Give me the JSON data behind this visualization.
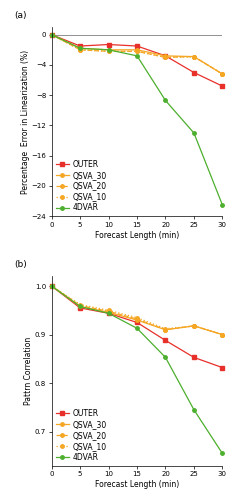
{
  "x": [
    0,
    5,
    10,
    15,
    20,
    25,
    30
  ],
  "panel_a": {
    "title": "(a)",
    "ylabel": "Percentage  Error in Linearization (%)",
    "xlabel": "Forecast Length (min)",
    "ylim": [
      -24,
      1
    ],
    "yticks": [
      0,
      -4,
      -8,
      -12,
      -16,
      -20,
      -24
    ],
    "xlim": [
      0,
      30
    ],
    "xticks": [
      0,
      5,
      10,
      15,
      20,
      25,
      30
    ],
    "OUTER": [
      0,
      -1.5,
      -1.3,
      -1.5,
      -2.8,
      -5.0,
      -6.8
    ],
    "QSVA_30": [
      0,
      -1.8,
      -2.0,
      -2.0,
      -2.8,
      -2.9,
      -5.2
    ],
    "QSVA_20": [
      0,
      -2.0,
      -2.2,
      -2.2,
      -3.0,
      -2.9,
      -5.2
    ],
    "QSVA_10": [
      0,
      -2.0,
      -2.2,
      -2.2,
      -3.0,
      -2.9,
      -5.2
    ],
    "4DVAR": [
      0,
      -1.8,
      -2.0,
      -2.8,
      -8.7,
      -13.0,
      -22.5
    ]
  },
  "panel_b": {
    "title": "(b)",
    "ylabel": "Pattrn Correlation",
    "xlabel": "Forecast Length (min)",
    "ylim": [
      0.63,
      1.02
    ],
    "yticks": [
      0.7,
      0.8,
      0.9,
      1.0
    ],
    "xlim": [
      0,
      30
    ],
    "xticks": [
      0,
      5,
      10,
      15,
      20,
      25,
      30
    ],
    "OUTER": [
      1.0,
      0.955,
      0.944,
      0.925,
      0.888,
      0.853,
      0.832
    ],
    "QSVA_30": [
      1.0,
      0.958,
      0.946,
      0.93,
      0.91,
      0.918,
      0.9
    ],
    "QSVA_20": [
      1.0,
      0.96,
      0.948,
      0.932,
      0.91,
      0.918,
      0.9
    ],
    "QSVA_10": [
      1.0,
      0.962,
      0.95,
      0.935,
      0.912,
      0.918,
      0.9
    ],
    "4DVAR": [
      1.0,
      0.958,
      0.944,
      0.913,
      0.853,
      0.745,
      0.655
    ]
  },
  "colors": {
    "OUTER": "#e8302a",
    "QSVA_30": "#f5a623",
    "QSVA_20": "#f5a623",
    "QSVA_10": "#f5a623",
    "4DVAR": "#4daf2e"
  },
  "markersize": 2.5,
  "linewidth": 0.9,
  "legend_fontsize": 5.5,
  "label_fontsize": 5.5,
  "tick_fontsize": 5.0,
  "title_fontsize": 6.5
}
